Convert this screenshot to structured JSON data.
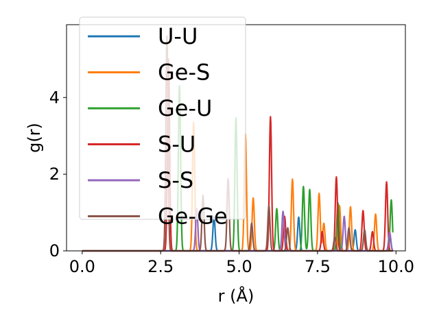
{
  "chart_data": {
    "type": "line",
    "title": "",
    "xlabel": "r (Å)",
    "ylabel": "g(r)",
    "xlim": [
      -0.5,
      10.3
    ],
    "ylim": [
      0,
      5.9
    ],
    "xticks": [
      0.0,
      2.5,
      5.0,
      7.5,
      10.0
    ],
    "xtick_labels": [
      "0.0",
      "2.5",
      "5.0",
      "7.5",
      "10.0"
    ],
    "yticks": [
      0,
      2,
      4
    ],
    "ytick_labels": [
      "0",
      "2",
      "4"
    ],
    "grid": false,
    "legend_position": "top-left",
    "series": [
      {
        "name": "U-U",
        "color": "#1f77b4",
        "peaks": [
          [
            4.2,
            0.9
          ],
          [
            6.9,
            0.88
          ],
          [
            8.7,
            0.55
          ],
          [
            9.8,
            0.45
          ]
        ]
      },
      {
        "name": "Ge-S",
        "color": "#ff7f0e",
        "peaks": [
          [
            3.55,
            3.35
          ],
          [
            5.2,
            3.05
          ],
          [
            5.45,
            1.38
          ],
          [
            6.7,
            1.87
          ],
          [
            7.55,
            1.5
          ],
          [
            7.7,
            0.72
          ],
          [
            8.2,
            1.18
          ],
          [
            8.55,
            1.15
          ],
          [
            9.35,
            0.96
          ]
        ]
      },
      {
        "name": "Ge-U",
        "color": "#2ca02c",
        "peaks": [
          [
            3.1,
            4.3
          ],
          [
            4.9,
            3.47
          ],
          [
            6.2,
            1.1
          ],
          [
            7.05,
            1.68
          ],
          [
            7.25,
            1.6
          ],
          [
            8.15,
            1.25
          ],
          [
            9.85,
            1.33
          ]
        ]
      },
      {
        "name": "S-U",
        "color": "#d62728",
        "peaks": [
          [
            2.75,
            5.0
          ],
          [
            6.0,
            3.5
          ],
          [
            6.45,
            0.9
          ],
          [
            7.65,
            0.5
          ],
          [
            8.1,
            1.93
          ],
          [
            8.95,
            1.05
          ],
          [
            9.25,
            0.5
          ],
          [
            9.7,
            1.8
          ]
        ]
      },
      {
        "name": "S-S",
        "color": "#9467bd",
        "peaks": [
          [
            3.65,
            1.1
          ],
          [
            6.4,
            1.03
          ],
          [
            8.35,
            0.9
          ],
          [
            9.8,
            0.48
          ]
        ]
      },
      {
        "name": "Ge-Ge",
        "color": "#8c564b",
        "peaks": [
          [
            2.7,
            5.6
          ],
          [
            3.85,
            1.45
          ],
          [
            4.65,
            1.88
          ],
          [
            5.4,
            0.72
          ],
          [
            5.95,
            1.18
          ],
          [
            6.55,
            0.6
          ],
          [
            8.05,
            0.35
          ],
          [
            8.5,
            0.6
          ],
          [
            9.0,
            0.55
          ]
        ]
      }
    ]
  }
}
